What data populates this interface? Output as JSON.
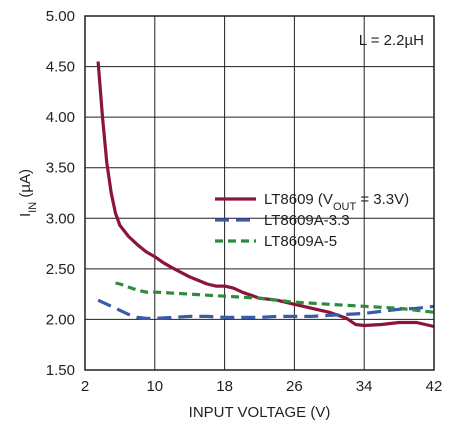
{
  "chart_data": {
    "type": "line",
    "title": "",
    "xlabel": "INPUT VOLTAGE (V)",
    "ylabel": {
      "main": "I",
      "sub": "IN",
      "rest": " (µA)"
    },
    "xlim": [
      2,
      42
    ],
    "ylim": [
      1.5,
      5.0
    ],
    "x_ticks": [
      2,
      10,
      18,
      26,
      34,
      42
    ],
    "y_ticks": [
      1.5,
      2.0,
      2.5,
      3.0,
      3.5,
      4.0,
      4.5,
      5.0
    ],
    "x_tick_labels": [
      "2",
      "10",
      "18",
      "26",
      "34",
      "42"
    ],
    "y_tick_labels": [
      "1.50",
      "2.00",
      "2.50",
      "3.00",
      "3.50",
      "4.00",
      "4.50",
      "5.00"
    ],
    "grid": true,
    "annotation": "L = 2.2µH",
    "legend_position": "center-right",
    "series": [
      {
        "name": "LT8609 (VOUT = 3.3V)",
        "legend": {
          "pre": "LT8609 (V",
          "sub": "OUT",
          "post": " = 3.3V)"
        },
        "color": "#8b1538",
        "dash": "solid",
        "x": [
          3.5,
          4.0,
          4.5,
          5.0,
          5.5,
          6.0,
          7.0,
          8.0,
          9.0,
          10.0,
          11.0,
          12.0,
          14.0,
          16.0,
          17.0,
          18.0,
          19.0,
          20.0,
          22.0,
          24.0,
          26.0,
          28.0,
          30.0,
          32.0,
          33.0,
          34.0,
          36.0,
          38.0,
          40.0,
          42.0
        ],
        "y": [
          4.55,
          4.0,
          3.55,
          3.25,
          3.05,
          2.93,
          2.82,
          2.74,
          2.67,
          2.62,
          2.56,
          2.51,
          2.42,
          2.35,
          2.33,
          2.33,
          2.31,
          2.27,
          2.21,
          2.19,
          2.15,
          2.11,
          2.07,
          2.01,
          1.95,
          1.94,
          1.95,
          1.97,
          1.97,
          1.93
        ]
      },
      {
        "name": "LT8609A-3.3",
        "legend": {
          "pre": "LT8609A-3.3",
          "sub": "",
          "post": ""
        },
        "color": "#3a5ba7",
        "dash": "long-dash",
        "x": [
          3.5,
          5.0,
          6.0,
          7.0,
          8.0,
          9.0,
          10.0,
          12.0,
          14.0,
          16.0,
          18.0,
          20.0,
          22.0,
          24.0,
          26.0,
          28.0,
          30.0,
          32.0,
          34.0,
          36.0,
          38.0,
          40.0,
          42.0
        ],
        "y": [
          2.19,
          2.13,
          2.09,
          2.05,
          2.02,
          2.01,
          2.01,
          2.02,
          2.03,
          2.03,
          2.02,
          2.02,
          2.02,
          2.03,
          2.03,
          2.03,
          2.04,
          2.05,
          2.06,
          2.08,
          2.1,
          2.11,
          2.13
        ]
      },
      {
        "name": "LT8609A-5",
        "legend": {
          "pre": "LT8609A-5",
          "sub": "",
          "post": ""
        },
        "color": "#2e8b3e",
        "dash": "short-dash",
        "x": [
          5.5,
          6.0,
          7.0,
          8.0,
          9.0,
          10.0,
          12.0,
          14.0,
          16.0,
          18.0,
          20.0,
          22.0,
          24.0,
          26.0,
          28.0,
          30.0,
          32.0,
          34.0,
          36.0,
          38.0,
          40.0,
          42.0
        ],
        "y": [
          2.36,
          2.35,
          2.32,
          2.29,
          2.27,
          2.27,
          2.26,
          2.25,
          2.24,
          2.23,
          2.22,
          2.21,
          2.19,
          2.17,
          2.16,
          2.15,
          2.14,
          2.13,
          2.12,
          2.11,
          2.09,
          2.07
        ]
      }
    ]
  }
}
